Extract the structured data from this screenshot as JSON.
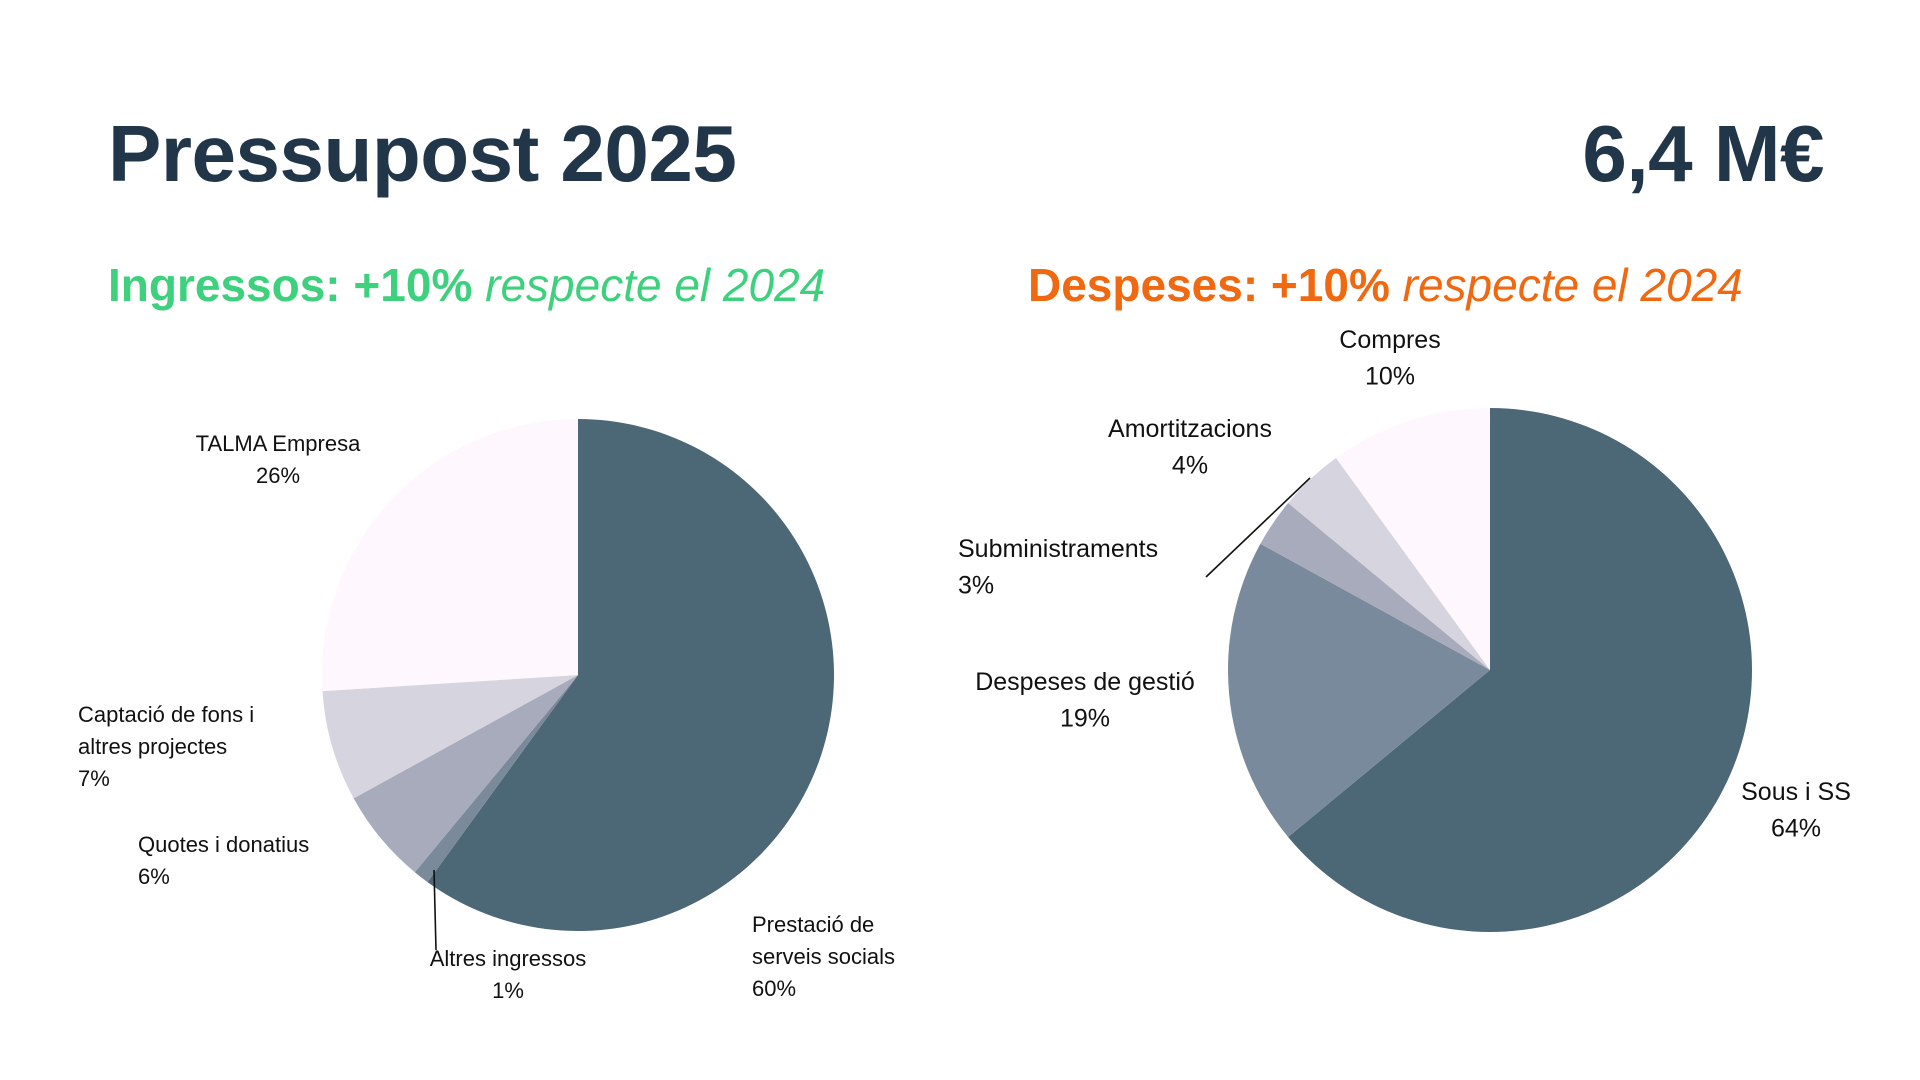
{
  "header": {
    "title": "Pressupost 2025",
    "total": "6,4 M€"
  },
  "income": {
    "heading_bold": "Ingressos: +10%",
    "heading_italic": "respecte el 2024",
    "color": "#3dd17e"
  },
  "expenses": {
    "heading_bold": "Despeses: +10%",
    "heading_italic": "respecte el 2024",
    "color": "#f0680f"
  },
  "chart_data": [
    {
      "type": "pie",
      "title": "Ingressos: +10% respecte el 2024",
      "slices": [
        {
          "label": [
            "Prestació de",
            "serveis socials"
          ],
          "pct_label": "60%",
          "value": 60,
          "color": "#4c6775"
        },
        {
          "label": [
            "Altres ingressos"
          ],
          "pct_label": "1%",
          "value": 1,
          "color": "#7a8a9a"
        },
        {
          "label": [
            "Quotes i donatius"
          ],
          "pct_label": "6%",
          "value": 6,
          "color": "#a8abbb"
        },
        {
          "label": [
            "Captació de fons i",
            "altres projectes"
          ],
          "pct_label": "7%",
          "value": 7,
          "color": "#d6d4df"
        },
        {
          "label": [
            "TALMA Empresa"
          ],
          "pct_label": "26%",
          "value": 26,
          "color": "#fef7fd"
        }
      ]
    },
    {
      "type": "pie",
      "title": "Despeses: +10% respecte el 2024",
      "slices": [
        {
          "label": [
            "Sous i SS"
          ],
          "pct_label": "64%",
          "value": 64,
          "color": "#4c6775"
        },
        {
          "label": [
            "Despeses de gestió"
          ],
          "pct_label": "19%",
          "value": 19,
          "color": "#7a8a9d"
        },
        {
          "label": [
            "Subministraments"
          ],
          "pct_label": "3%",
          "value": 3,
          "color": "#a8abbb"
        },
        {
          "label": [
            "Amortitzacions"
          ],
          "pct_label": "4%",
          "value": 4,
          "color": "#d6d4df"
        },
        {
          "label": [
            "Compres"
          ],
          "pct_label": "10%",
          "value": 10,
          "color": "#fef7fd"
        }
      ]
    }
  ]
}
